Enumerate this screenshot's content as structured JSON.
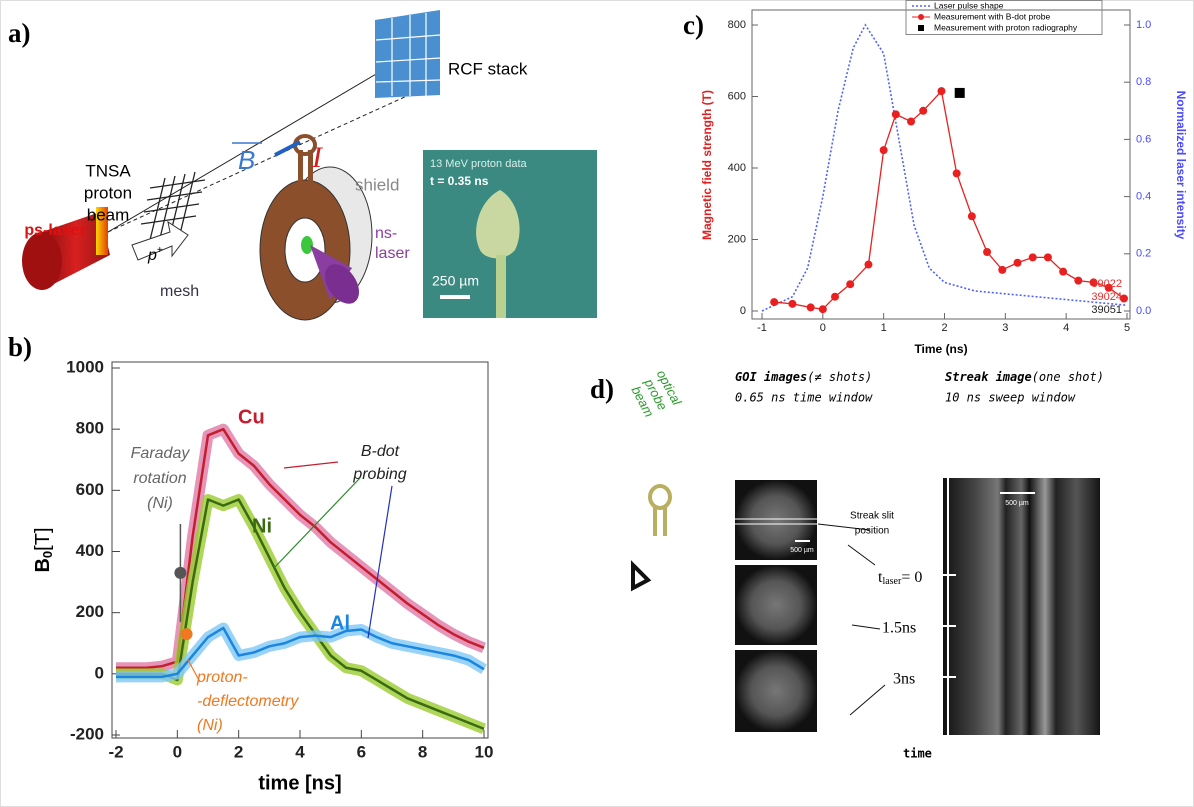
{
  "panel_a": {
    "label": "a)",
    "beam_label": [
      "TNSA",
      "proton",
      "beam"
    ],
    "ps_laser": "ps-laser",
    "mesh": "mesh",
    "proton": {
      "main": "p",
      "sup": "+"
    },
    "field": "B",
    "current": "I",
    "rcf_stack": "RCF stack",
    "shield": "shield",
    "ns_laser": [
      "ns-",
      "laser"
    ],
    "inset": {
      "title": "13 MeV proton data",
      "time": "t = 0.35 ns",
      "scale": "250 µm"
    }
  },
  "panel_d": {
    "label": "d)",
    "probe_beam": [
      "optical",
      "probe",
      "beam"
    ],
    "goi": {
      "title": "GOI images",
      "note": "(≠ shots)",
      "window": "0.65 ns time window"
    },
    "streak": {
      "title": "Streak image",
      "note": "(one shot)",
      "window": "10 ns sweep window"
    },
    "slit": [
      "Streak slit",
      "position"
    ],
    "scale_goi": "500 µm",
    "scale_streak": "500 µm",
    "t0": {
      "main": "t",
      "sub": "laser",
      "rest": "= 0"
    },
    "t1": "1.5ns",
    "t2": "3ns",
    "time_axis": "time"
  },
  "chart_data": [
    {
      "type": "line",
      "panel_label": "b)",
      "xlabel": "time [ns]",
      "ylabel": {
        "main": "B",
        "sub": "0",
        "unit": "[T]"
      },
      "x": [
        -2,
        -1.5,
        -1,
        -0.5,
        0,
        0.5,
        1,
        1.5,
        2,
        2.5,
        3,
        3.5,
        4,
        4.5,
        5,
        5.5,
        6,
        6.5,
        7,
        7.5,
        8,
        8.5,
        9,
        9.5,
        10
      ],
      "xlim": [
        -2,
        10
      ],
      "xticks": [
        -2,
        0,
        2,
        4,
        6,
        8,
        10
      ],
      "ylim": [
        -200,
        1000
      ],
      "yticks": [
        -200,
        0,
        200,
        400,
        600,
        800,
        1000
      ],
      "series": [
        {
          "name": "Cu",
          "color": "#c41e2e",
          "band_color": "#e07aa6",
          "values": [
            20,
            20,
            20,
            25,
            40,
            450,
            780,
            800,
            720,
            680,
            620,
            570,
            520,
            480,
            430,
            390,
            350,
            310,
            270,
            230,
            195,
            160,
            130,
            105,
            85
          ]
        },
        {
          "name": "Ni",
          "color": "#3b6a12",
          "band_color": "#9acc30",
          "values": [
            0,
            0,
            0,
            0,
            -20,
            300,
            570,
            550,
            570,
            480,
            380,
            280,
            200,
            130,
            60,
            20,
            10,
            -20,
            -50,
            -80,
            -100,
            -120,
            -140,
            -160,
            -180
          ]
        },
        {
          "name": "Al",
          "color": "#1a86e0",
          "band_color": "#80c8f5",
          "values": [
            -10,
            -10,
            -10,
            -10,
            0,
            60,
            120,
            150,
            60,
            70,
            90,
            100,
            120,
            125,
            120,
            140,
            145,
            120,
            100,
            90,
            80,
            70,
            60,
            45,
            15
          ]
        }
      ],
      "annotations": {
        "faraday": [
          "Faraday",
          "rotation",
          "(Ni)"
        ],
        "bdot": [
          "B-dot",
          "probing"
        ],
        "proton": [
          "proton-",
          "-deflectometry",
          "(Ni)"
        ]
      },
      "markers": [
        {
          "x": 0.1,
          "value": 330,
          "error": 160,
          "color": "#555555"
        },
        {
          "x": 0.3,
          "value": 130,
          "color": "#f07820"
        }
      ]
    },
    {
      "type": "line",
      "panel_label": "c)",
      "xlabel": "Time (ns)",
      "ylabel": "Magnetic field strength (T)",
      "y2label": "Normalized laser intensity",
      "xlim": [
        -1,
        5
      ],
      "xticks": [
        -1,
        0,
        1,
        2,
        3,
        4,
        5
      ],
      "ylim": [
        0,
        800
      ],
      "yticks": [
        0,
        200,
        400,
        600,
        800
      ],
      "y2lim": [
        0,
        1
      ],
      "y2ticks": [
        {
          "value": 0,
          "label": "0.0"
        },
        0.2,
        0.4,
        0.6,
        0.8,
        {
          "value": 1,
          "label": "1.0"
        }
      ],
      "series": [
        {
          "name": "Laser pulse shape",
          "color": "#5060ff",
          "style": "dotted",
          "axis": "y2",
          "x": [
            -1,
            -0.5,
            -0.25,
            0,
            0.25,
            0.5,
            0.7,
            1,
            1.25,
            1.5,
            1.75,
            2,
            2.5,
            3,
            3.5,
            4,
            4.5,
            5
          ],
          "values": [
            0,
            0.05,
            0.15,
            0.4,
            0.7,
            0.92,
            1,
            0.9,
            0.6,
            0.3,
            0.15,
            0.1,
            0.07,
            0.06,
            0.05,
            0.04,
            0.03,
            0.02
          ]
        },
        {
          "name": "Measurement with B-dot probe",
          "color": "#e82020",
          "style": "solid",
          "marker": "circle",
          "x": [
            -0.8,
            -0.5,
            -0.2,
            0,
            0.2,
            0.45,
            0.75,
            1,
            1.2,
            1.45,
            1.65,
            1.95,
            2.2,
            2.45,
            2.7,
            2.95,
            3.2,
            3.45,
            3.7,
            3.95,
            4.2,
            4.45,
            4.7,
            4.95
          ],
          "values": [
            25,
            20,
            10,
            5,
            40,
            75,
            130,
            450,
            550,
            530,
            560,
            615,
            385,
            265,
            165,
            115,
            135,
            150,
            150,
            110,
            85,
            80,
            65,
            35
          ]
        },
        {
          "name": "Measurement with proton radiography",
          "color": "#000000",
          "style": "none",
          "marker": "square",
          "x": [
            2.25
          ],
          "values": [
            610
          ]
        }
      ],
      "shots": [
        {
          "label": "39022",
          "color": "#e83030"
        },
        {
          "label": "39024",
          "color": "#e83030"
        },
        {
          "label": "39051",
          "color": "#222222"
        }
      ]
    }
  ]
}
